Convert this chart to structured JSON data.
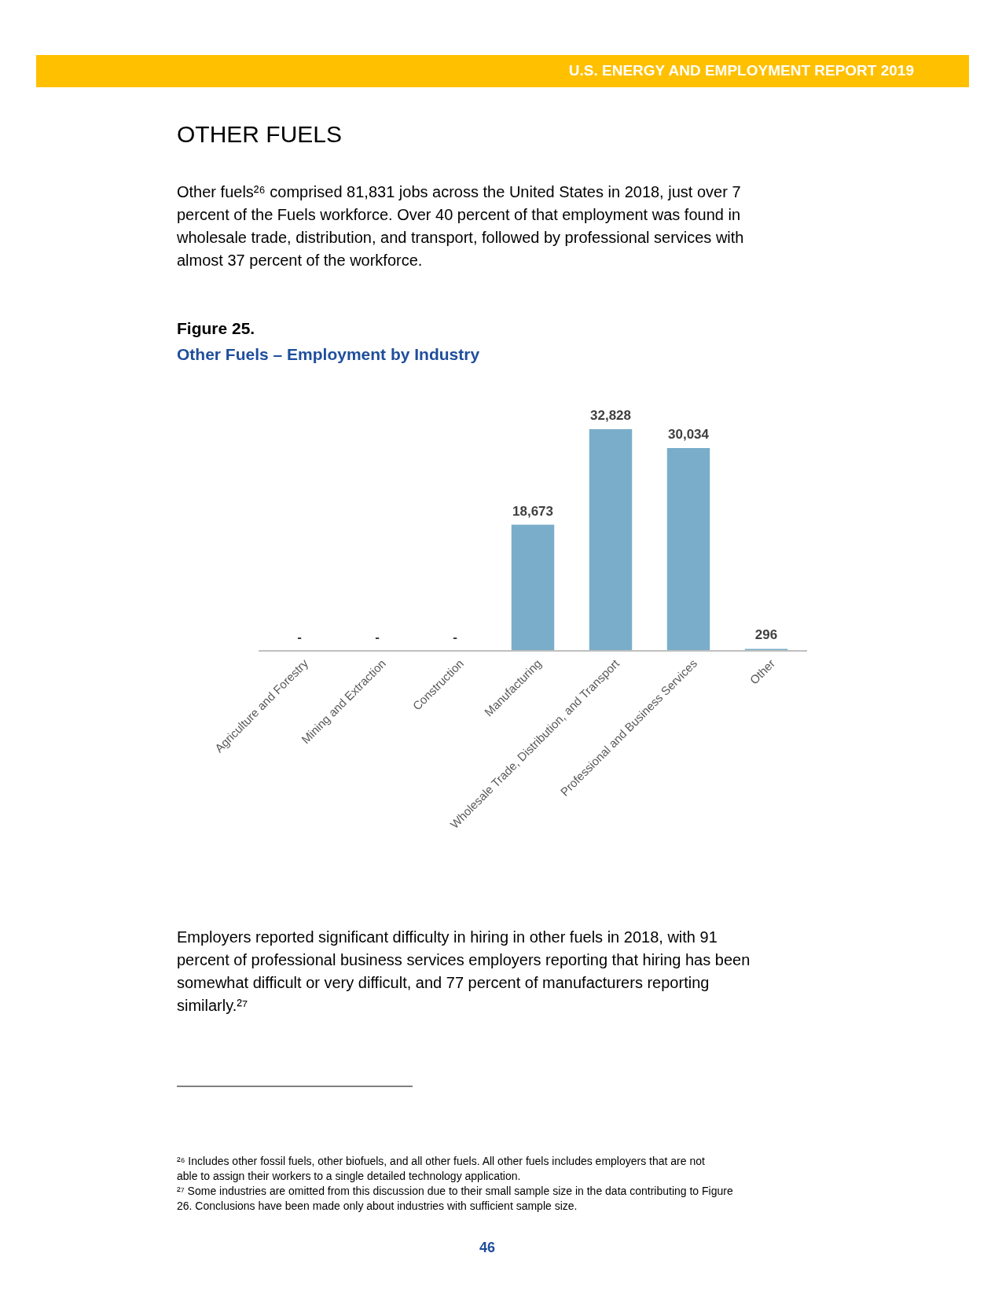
{
  "chart_data": {
    "type": "bar",
    "title": "Figure 25.",
    "subtitle": "Other Fuels – Employment by Industry",
    "categories": [
      "Agriculture and Forestry",
      "Mining and Extraction",
      "Construction",
      "Manufacturing",
      "Wholesale Trade, Distribution, and Transport",
      "Professional and Business Services",
      "Other"
    ],
    "values": [
      0,
      0,
      0,
      18673,
      32828,
      30034,
      296
    ],
    "value_labels": [
      "-",
      "-",
      "-",
      "18,673",
      "32,828",
      "30,034",
      "296"
    ],
    "color": "#7aadc9",
    "annotations": [
      "U.S. ENERGY AND EMPLOYMENT REPORT 2019",
      "OTHER FUELS",
      "Other fuels²⁶ comprised 81,831 jobs across the United States in 2018, just over 7 percent of the Fuels workforce. Over 40 percent of that employment was found in wholesale trade, distribution, and transport, followed by professional services with almost 37 percent of the workforce.",
      "Employers reported significant difficulty in hiring in other fuels in 2018, with 91 percent of professional business services employers reporting that hiring has been somewhat difficult or very difficult, and 77 percent of manufacturers reporting similarly.²⁷",
      "²⁶ Includes other fossil fuels, other biofuels, and all other fuels. All other fuels includes employers that are not able to assign their workers to a single detailed technology application.",
      "²⁷ Some industries are omitted from this discussion due to their small sample size in the data contributing to Figure 26. Conclusions have been made only about industries with sufficient sample size.",
      "46"
    ]
  }
}
